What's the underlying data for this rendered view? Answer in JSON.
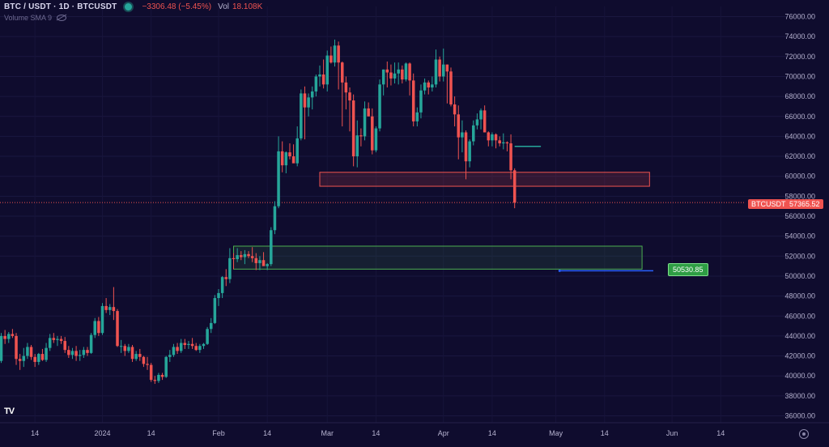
{
  "header": {
    "symbol": "BTC / USDT · 1D · BTCUSDT",
    "change": "−3306.48 (−5.45%)",
    "vol_label": "Vol",
    "vol_value": "18.108K",
    "sma_label": "Volume SMA 9"
  },
  "price_tags": {
    "symbol_tag": "BTCUSDT",
    "current_price": "57365.52",
    "target_price": "50530.85"
  },
  "colors": {
    "background": "#0f0c2e",
    "up": "#26a69a",
    "down": "#ef5350",
    "resistance_zone": "#ef5350",
    "support_zone": "#4caf50",
    "target_line": "#2962ff"
  },
  "chart_data": {
    "type": "candlestick",
    "y_axis_ticks": [
      "76000.00",
      "74000.00",
      "72000.00",
      "70000.00",
      "68000.00",
      "66000.00",
      "64000.00",
      "62000.00",
      "60000.00",
      "58000.00",
      "56000.00",
      "54000.00",
      "52000.00",
      "50000.00",
      "48000.00",
      "46000.00",
      "44000.00",
      "42000.00",
      "40000.00",
      "38000.00",
      "36000.00"
    ],
    "ylim": [
      35500,
      77500
    ],
    "x_axis_labels": [
      {
        "label": "14",
        "date": "2023-12-14"
      },
      {
        "label": "2024",
        "date": "2024-01-01"
      },
      {
        "label": "14",
        "date": "2024-01-14"
      },
      {
        "label": "Feb",
        "date": "2024-02-01"
      },
      {
        "label": "14",
        "date": "2024-02-14"
      },
      {
        "label": "Mar",
        "date": "2024-03-01"
      },
      {
        "label": "14",
        "date": "2024-03-14"
      },
      {
        "label": "Apr",
        "date": "2024-04-01"
      },
      {
        "label": "14",
        "date": "2024-04-14"
      },
      {
        "label": "May",
        "date": "2024-05-01"
      },
      {
        "label": "14",
        "date": "2024-05-14"
      },
      {
        "label": "Jun",
        "date": "2024-06-01"
      },
      {
        "label": "14",
        "date": "2024-06-14"
      }
    ],
    "first_candle_date": "2023-12-04",
    "candles_ohlc": [
      [
        41900,
        42400,
        40900,
        41500
      ],
      [
        41500,
        44300,
        41300,
        44000
      ],
      [
        44000,
        44600,
        43200,
        43700
      ],
      [
        43700,
        44400,
        43300,
        44200
      ],
      [
        44200,
        44700,
        43800,
        44000
      ],
      [
        44000,
        44300,
        41100,
        41700
      ],
      [
        41700,
        42200,
        40600,
        41500
      ],
      [
        41500,
        42800,
        40900,
        42000
      ],
      [
        42000,
        43300,
        41700,
        42900
      ],
      [
        42900,
        43100,
        41600,
        41900
      ],
      [
        41900,
        42200,
        40900,
        41400
      ],
      [
        41400,
        42300,
        41100,
        42200
      ],
      [
        42200,
        42700,
        41500,
        41600
      ],
      [
        41600,
        43300,
        41400,
        42800
      ],
      [
        42800,
        44200,
        42500,
        43800
      ],
      [
        43800,
        44300,
        43300,
        43600
      ],
      [
        43600,
        44000,
        43000,
        43700
      ],
      [
        43700,
        44000,
        43200,
        43500
      ],
      [
        43500,
        43900,
        42300,
        42600
      ],
      [
        42600,
        43000,
        41800,
        42100
      ],
      [
        42100,
        42800,
        41700,
        42500
      ],
      [
        42500,
        43000,
        41500,
        42000
      ],
      [
        42000,
        42600,
        41500,
        42100
      ],
      [
        42100,
        42900,
        41800,
        42600
      ],
      [
        42600,
        42900,
        42000,
        42300
      ],
      [
        42300,
        44300,
        42200,
        44100
      ],
      [
        44100,
        45800,
        43800,
        45500
      ],
      [
        45500,
        45900,
        44000,
        44300
      ],
      [
        44300,
        47300,
        44100,
        47000
      ],
      [
        47000,
        47800,
        46300,
        46600
      ],
      [
        46600,
        47200,
        46100,
        46900
      ],
      [
        46900,
        48900,
        45600,
        46500
      ],
      [
        46500,
        46700,
        42900,
        43000
      ],
      [
        43000,
        43600,
        42300,
        43000
      ],
      [
        43000,
        43200,
        42000,
        42500
      ],
      [
        42500,
        43200,
        42300,
        42900
      ],
      [
        42900,
        43100,
        41400,
        41700
      ],
      [
        41700,
        42500,
        41500,
        42200
      ],
      [
        42200,
        42700,
        41500,
        41900
      ],
      [
        41900,
        42000,
        40900,
        41200
      ],
      [
        41200,
        41900,
        40600,
        41100
      ],
      [
        41100,
        41300,
        39400,
        39600
      ],
      [
        39600,
        40000,
        39200,
        39500
      ],
      [
        39500,
        40300,
        39300,
        40100
      ],
      [
        40100,
        40300,
        39600,
        39900
      ],
      [
        39900,
        42000,
        39800,
        41900
      ],
      [
        41900,
        42600,
        41400,
        42100
      ],
      [
        42100,
        43200,
        41900,
        42900
      ],
      [
        42900,
        43300,
        42200,
        42500
      ],
      [
        42500,
        43700,
        42300,
        43300
      ],
      [
        43300,
        43700,
        42700,
        43100
      ],
      [
        43100,
        43500,
        42700,
        43200
      ],
      [
        43200,
        43800,
        42700,
        43000
      ],
      [
        43000,
        43300,
        42500,
        42600
      ],
      [
        42600,
        43200,
        42300,
        43000
      ],
      [
        43000,
        43300,
        42700,
        43200
      ],
      [
        43200,
        44900,
        43100,
        44700
      ],
      [
        44700,
        45800,
        44300,
        45300
      ],
      [
        45300,
        48100,
        45200,
        47800
      ],
      [
        47800,
        48700,
        47000,
        48300
      ],
      [
        48300,
        50000,
        47800,
        49900
      ],
      [
        49900,
        50700,
        49000,
        49700
      ],
      [
        49700,
        52800,
        49300,
        51800
      ],
      [
        51800,
        52300,
        50700,
        51700
      ],
      [
        51700,
        52800,
        51400,
        52100
      ],
      [
        52100,
        52500,
        51600,
        51900
      ],
      [
        51900,
        52600,
        51200,
        52200
      ],
      [
        52200,
        52500,
        51800,
        52000
      ],
      [
        52000,
        52900,
        51400,
        51800
      ],
      [
        51800,
        52300,
        50600,
        51300
      ],
      [
        51300,
        52000,
        50600,
        51600
      ],
      [
        51600,
        52400,
        51200,
        51000
      ],
      [
        51000,
        51300,
        50600,
        51200
      ],
      [
        51200,
        54900,
        51000,
        54600
      ],
      [
        54600,
        57500,
        54200,
        57000
      ],
      [
        57000,
        64000,
        56800,
        62500
      ],
      [
        62500,
        63500,
        60400,
        61100
      ],
      [
        61100,
        62500,
        60300,
        62400
      ],
      [
        62400,
        63300,
        61700,
        62000
      ],
      [
        62000,
        63200,
        61400,
        61300
      ],
      [
        61300,
        65000,
        61000,
        63800
      ],
      [
        63800,
        68700,
        63600,
        68300
      ],
      [
        68300,
        69000,
        63700,
        66900
      ],
      [
        66900,
        68300,
        66000,
        67900
      ],
      [
        67900,
        69000,
        66700,
        68500
      ],
      [
        68500,
        70200,
        68000,
        70000
      ],
      [
        70000,
        71100,
        69000,
        70200
      ],
      [
        70200,
        71700,
        68800,
        69200
      ],
      [
        69200,
        72600,
        68500,
        72100
      ],
      [
        72100,
        73000,
        71300,
        71400
      ],
      [
        71400,
        73700,
        71000,
        73100
      ],
      [
        73100,
        73500,
        68700,
        71400
      ],
      [
        71400,
        71500,
        65000,
        69400
      ],
      [
        69400,
        70000,
        66700,
        68400
      ],
      [
        68400,
        68900,
        64500,
        67600
      ],
      [
        67600,
        68200,
        61000,
        62000
      ],
      [
        62000,
        65600,
        60900,
        64100
      ],
      [
        64100,
        64800,
        63000,
        64000
      ],
      [
        64000,
        67500,
        63600,
        66800
      ],
      [
        66800,
        67400,
        66000,
        66000
      ],
      [
        66000,
        66800,
        62200,
        62600
      ],
      [
        62600,
        65000,
        62400,
        64800
      ],
      [
        64800,
        69700,
        64500,
        69200
      ],
      [
        69200,
        70700,
        68100,
        70700
      ],
      [
        70700,
        71500,
        68900,
        70400
      ],
      [
        70400,
        71200,
        69100,
        69800
      ],
      [
        69800,
        71400,
        69300,
        70300
      ],
      [
        70300,
        71400,
        69200,
        70700
      ],
      [
        70700,
        71100,
        69300,
        69700
      ],
      [
        69700,
        71400,
        69500,
        71300
      ],
      [
        71300,
        71400,
        68100,
        69600
      ],
      [
        69600,
        70300,
        65000,
        65500
      ],
      [
        65500,
        66900,
        65000,
        66400
      ],
      [
        66400,
        69200,
        65800,
        68600
      ],
      [
        68600,
        69800,
        68200,
        69400
      ],
      [
        69400,
        69600,
        68200,
        68900
      ],
      [
        68900,
        70000,
        68500,
        69200
      ],
      [
        69200,
        72700,
        68900,
        71700
      ],
      [
        71700,
        72000,
        69500,
        70000
      ],
      [
        70000,
        72800,
        69500,
        71200
      ],
      [
        71200,
        71200,
        67300,
        70500
      ],
      [
        70500,
        70900,
        67000,
        67200
      ],
      [
        67200,
        68000,
        65000,
        66200
      ],
      [
        66200,
        67100,
        61700,
        63900
      ],
      [
        63900,
        65600,
        62400,
        64400
      ],
      [
        64400,
        64600,
        59700,
        61500
      ],
      [
        61500,
        63700,
        60900,
        63500
      ],
      [
        63500,
        65600,
        63100,
        65100
      ],
      [
        65100,
        66300,
        64700,
        65700
      ],
      [
        65700,
        66800,
        64700,
        66600
      ],
      [
        66600,
        67100,
        64400,
        64400
      ],
      [
        64400,
        64500,
        63000,
        63600
      ],
      [
        63600,
        64400,
        63000,
        64200
      ],
      [
        64200,
        64300,
        62800,
        63600
      ],
      [
        63600,
        64000,
        63000,
        63300
      ],
      [
        63300,
        64300,
        62700,
        63400
      ],
      [
        63400,
        63500,
        62500,
        63300
      ],
      [
        63300,
        64200,
        59700,
        60600
      ],
      [
        60600,
        60800,
        56800,
        57365
      ]
    ],
    "annotations": [
      {
        "type": "resistance_zone",
        "date_from": "2024-02-28",
        "date_to": "2024-05-26",
        "price_from": 59000,
        "price_to": 60400
      },
      {
        "type": "support_zone",
        "date_from": "2024-02-05",
        "date_to": "2024-05-24",
        "price_from": 50700,
        "price_to": 53000
      },
      {
        "type": "horizontal_line",
        "date_from": "2024-04-20",
        "date_to": "2024-04-27",
        "price": 63000
      },
      {
        "type": "target_line",
        "date_from": "2024-05-02",
        "date_to": "2024-05-27",
        "price": 50530.85
      },
      {
        "type": "current_price_line",
        "price": 57365.52
      }
    ]
  }
}
